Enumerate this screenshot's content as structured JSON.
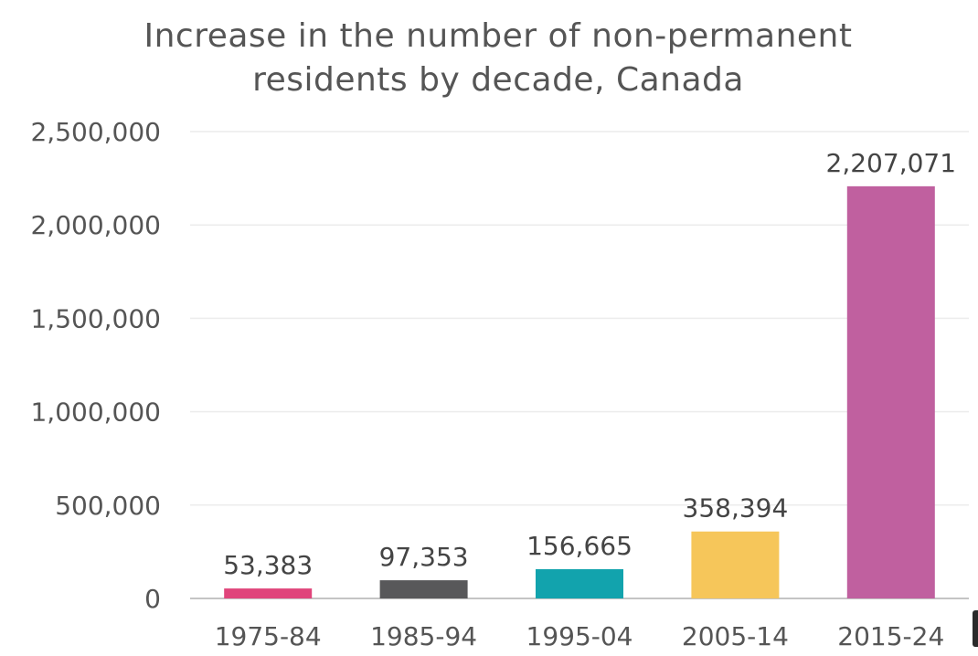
{
  "chart_data": {
    "type": "bar",
    "title": "Increase in the number of non-permanent residents by decade, Canada",
    "title_lines": [
      "Increase in the number of non-permanent",
      "residents by decade, Canada"
    ],
    "xlabel": "",
    "ylabel": "",
    "categories": [
      "1975-84",
      "1985-94",
      "1995-04",
      "2005-14",
      "2015-24"
    ],
    "values": [
      53383,
      97353,
      156665,
      358394,
      2207071
    ],
    "value_labels": [
      "53,383",
      "97,353",
      "156,665",
      "358,394",
      "2,207,071"
    ],
    "colors": [
      "#e0457b",
      "#58585a",
      "#12a3ad",
      "#f6c65a",
      "#c0609f"
    ],
    "ylim": [
      0,
      2500000
    ],
    "yticks": [
      0,
      500000,
      1000000,
      1500000,
      2000000,
      2500000
    ],
    "ytick_labels": [
      "0",
      "500,000",
      "1,000,000",
      "1,500,000",
      "2,000,000",
      "2,500,000"
    ],
    "grid": true,
    "legend": "none"
  }
}
